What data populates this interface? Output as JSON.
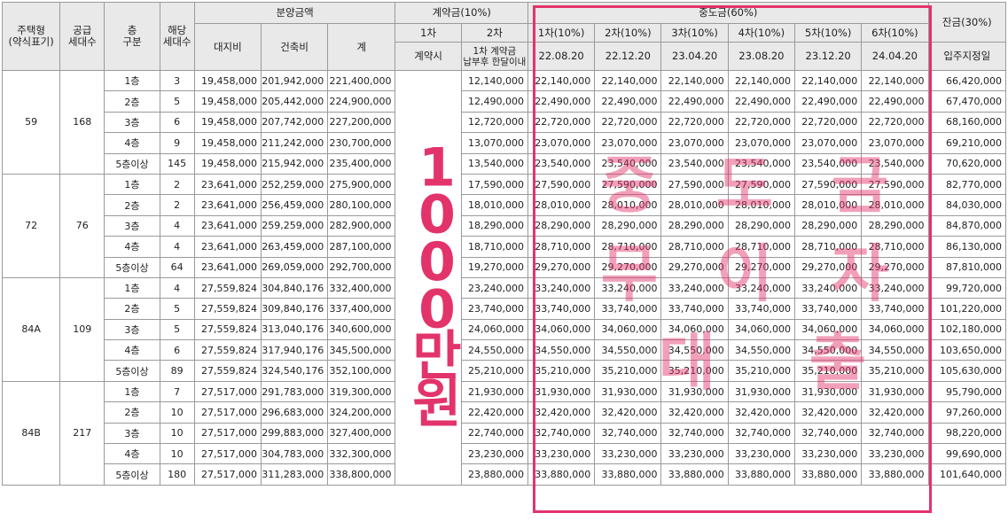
{
  "headers": {
    "unit_type": "주택형\n(약식표기)",
    "supply_households": "공급\n세대수",
    "floor_group": "층\n구분",
    "households": "해당\n세대수",
    "sale_price": "분양금액",
    "land": "대지비",
    "building": "건축비",
    "total": "계",
    "contract": "계약금(10%)",
    "contract_1": "1차",
    "contract_2": "2차",
    "contract_1_time": "계약시",
    "contract_2_time": "1차 계약금\n납부후 한달이내",
    "interim": "중도금(60%)",
    "interim_rounds": [
      "1차(10%)",
      "2차(10%)",
      "3차(10%)",
      "4차(10%)",
      "5차(10%)",
      "6차(10%)"
    ],
    "interim_dates": [
      "22.08.20",
      "22.12.20",
      "23.04.20",
      "23.08.20",
      "23.12.20",
      "24.04.20"
    ],
    "balance": "잔금(30%)",
    "balance_time": "입주지정일"
  },
  "groups": [
    {
      "type": "59",
      "supply": "168",
      "rows": [
        {
          "floor": "1층",
          "hh": "3",
          "land": "19,458,000",
          "bld": "201,942,000",
          "total": "221,400,000",
          "c2": "12,140,000",
          "mid": "22,140,000",
          "bal": "66,420,000"
        },
        {
          "floor": "2층",
          "hh": "5",
          "land": "19,458,000",
          "bld": "205,442,000",
          "total": "224,900,000",
          "c2": "12,490,000",
          "mid": "22,490,000",
          "bal": "67,470,000"
        },
        {
          "floor": "3층",
          "hh": "6",
          "land": "19,458,000",
          "bld": "207,742,000",
          "total": "227,200,000",
          "c2": "12,720,000",
          "mid": "22,720,000",
          "bal": "68,160,000"
        },
        {
          "floor": "4층",
          "hh": "9",
          "land": "19,458,000",
          "bld": "211,242,000",
          "total": "230,700,000",
          "c2": "13,070,000",
          "mid": "23,070,000",
          "bal": "69,210,000"
        },
        {
          "floor": "5층이상",
          "hh": "145",
          "land": "19,458,000",
          "bld": "215,942,000",
          "total": "235,400,000",
          "c2": "13,540,000",
          "mid": "23,540,000",
          "bal": "70,620,000"
        }
      ]
    },
    {
      "type": "72",
      "supply": "76",
      "rows": [
        {
          "floor": "1층",
          "hh": "2",
          "land": "23,641,000",
          "bld": "252,259,000",
          "total": "275,900,000",
          "c2": "17,590,000",
          "mid": "27,590,000",
          "bal": "82,770,000"
        },
        {
          "floor": "2층",
          "hh": "2",
          "land": "23,641,000",
          "bld": "256,459,000",
          "total": "280,100,000",
          "c2": "18,010,000",
          "mid": "28,010,000",
          "bal": "84,030,000"
        },
        {
          "floor": "3층",
          "hh": "4",
          "land": "23,641,000",
          "bld": "259,259,000",
          "total": "282,900,000",
          "c2": "18,290,000",
          "mid": "28,290,000",
          "bal": "84,870,000"
        },
        {
          "floor": "4층",
          "hh": "4",
          "land": "23,641,000",
          "bld": "263,459,000",
          "total": "287,100,000",
          "c2": "18,710,000",
          "mid": "28,710,000",
          "bal": "86,130,000"
        },
        {
          "floor": "5층이상",
          "hh": "64",
          "land": "23,641,000",
          "bld": "269,059,000",
          "total": "292,700,000",
          "c2": "19,270,000",
          "mid": "29,270,000",
          "bal": "87,810,000"
        }
      ]
    },
    {
      "type": "84A",
      "supply": "109",
      "rows": [
        {
          "floor": "1층",
          "hh": "4",
          "land": "27,559,824",
          "bld": "304,840,176",
          "total": "332,400,000",
          "c2": "23,240,000",
          "mid": "33,240,000",
          "bal": "99,720,000"
        },
        {
          "floor": "2층",
          "hh": "5",
          "land": "27,559,824",
          "bld": "309,840,176",
          "total": "337,400,000",
          "c2": "23,740,000",
          "mid": "33,740,000",
          "bal": "101,220,000"
        },
        {
          "floor": "3층",
          "hh": "5",
          "land": "27,559,824",
          "bld": "313,040,176",
          "total": "340,600,000",
          "c2": "24,060,000",
          "mid": "34,060,000",
          "bal": "102,180,000"
        },
        {
          "floor": "4층",
          "hh": "6",
          "land": "27,559,824",
          "bld": "317,940,176",
          "total": "345,500,000",
          "c2": "24,550,000",
          "mid": "34,550,000",
          "bal": "103,650,000"
        },
        {
          "floor": "5층이상",
          "hh": "89",
          "land": "27,559,824",
          "bld": "324,540,176",
          "total": "352,100,000",
          "c2": "25,210,000",
          "mid": "35,210,000",
          "bal": "105,630,000"
        }
      ]
    },
    {
      "type": "84B",
      "supply": "217",
      "rows": [
        {
          "floor": "1층",
          "hh": "7",
          "land": "27,517,000",
          "bld": "291,783,000",
          "total": "319,300,000",
          "c2": "21,930,000",
          "mid": "31,930,000",
          "bal": "95,790,000"
        },
        {
          "floor": "2층",
          "hh": "10",
          "land": "27,517,000",
          "bld": "296,683,000",
          "total": "324,200,000",
          "c2": "22,420,000",
          "mid": "32,420,000",
          "bal": "97,260,000"
        },
        {
          "floor": "3층",
          "hh": "10",
          "land": "27,517,000",
          "bld": "299,883,000",
          "total": "327,400,000",
          "c2": "22,740,000",
          "mid": "32,740,000",
          "bal": "98,220,000"
        },
        {
          "floor": "4층",
          "hh": "10",
          "land": "27,517,000",
          "bld": "304,783,000",
          "total": "332,300,000",
          "c2": "23,230,000",
          "mid": "33,230,000",
          "bal": "99,690,000"
        },
        {
          "floor": "5층이상",
          "hh": "180",
          "land": "27,517,000",
          "bld": "311,283,000",
          "total": "338,800,000",
          "c2": "23,880,000",
          "mid": "33,880,000",
          "bal": "101,640,000"
        }
      ]
    }
  ],
  "overlay": {
    "contract_text": "1000만원",
    "stamp_text": "중도금무이자대출",
    "accent": "#e3336b"
  }
}
